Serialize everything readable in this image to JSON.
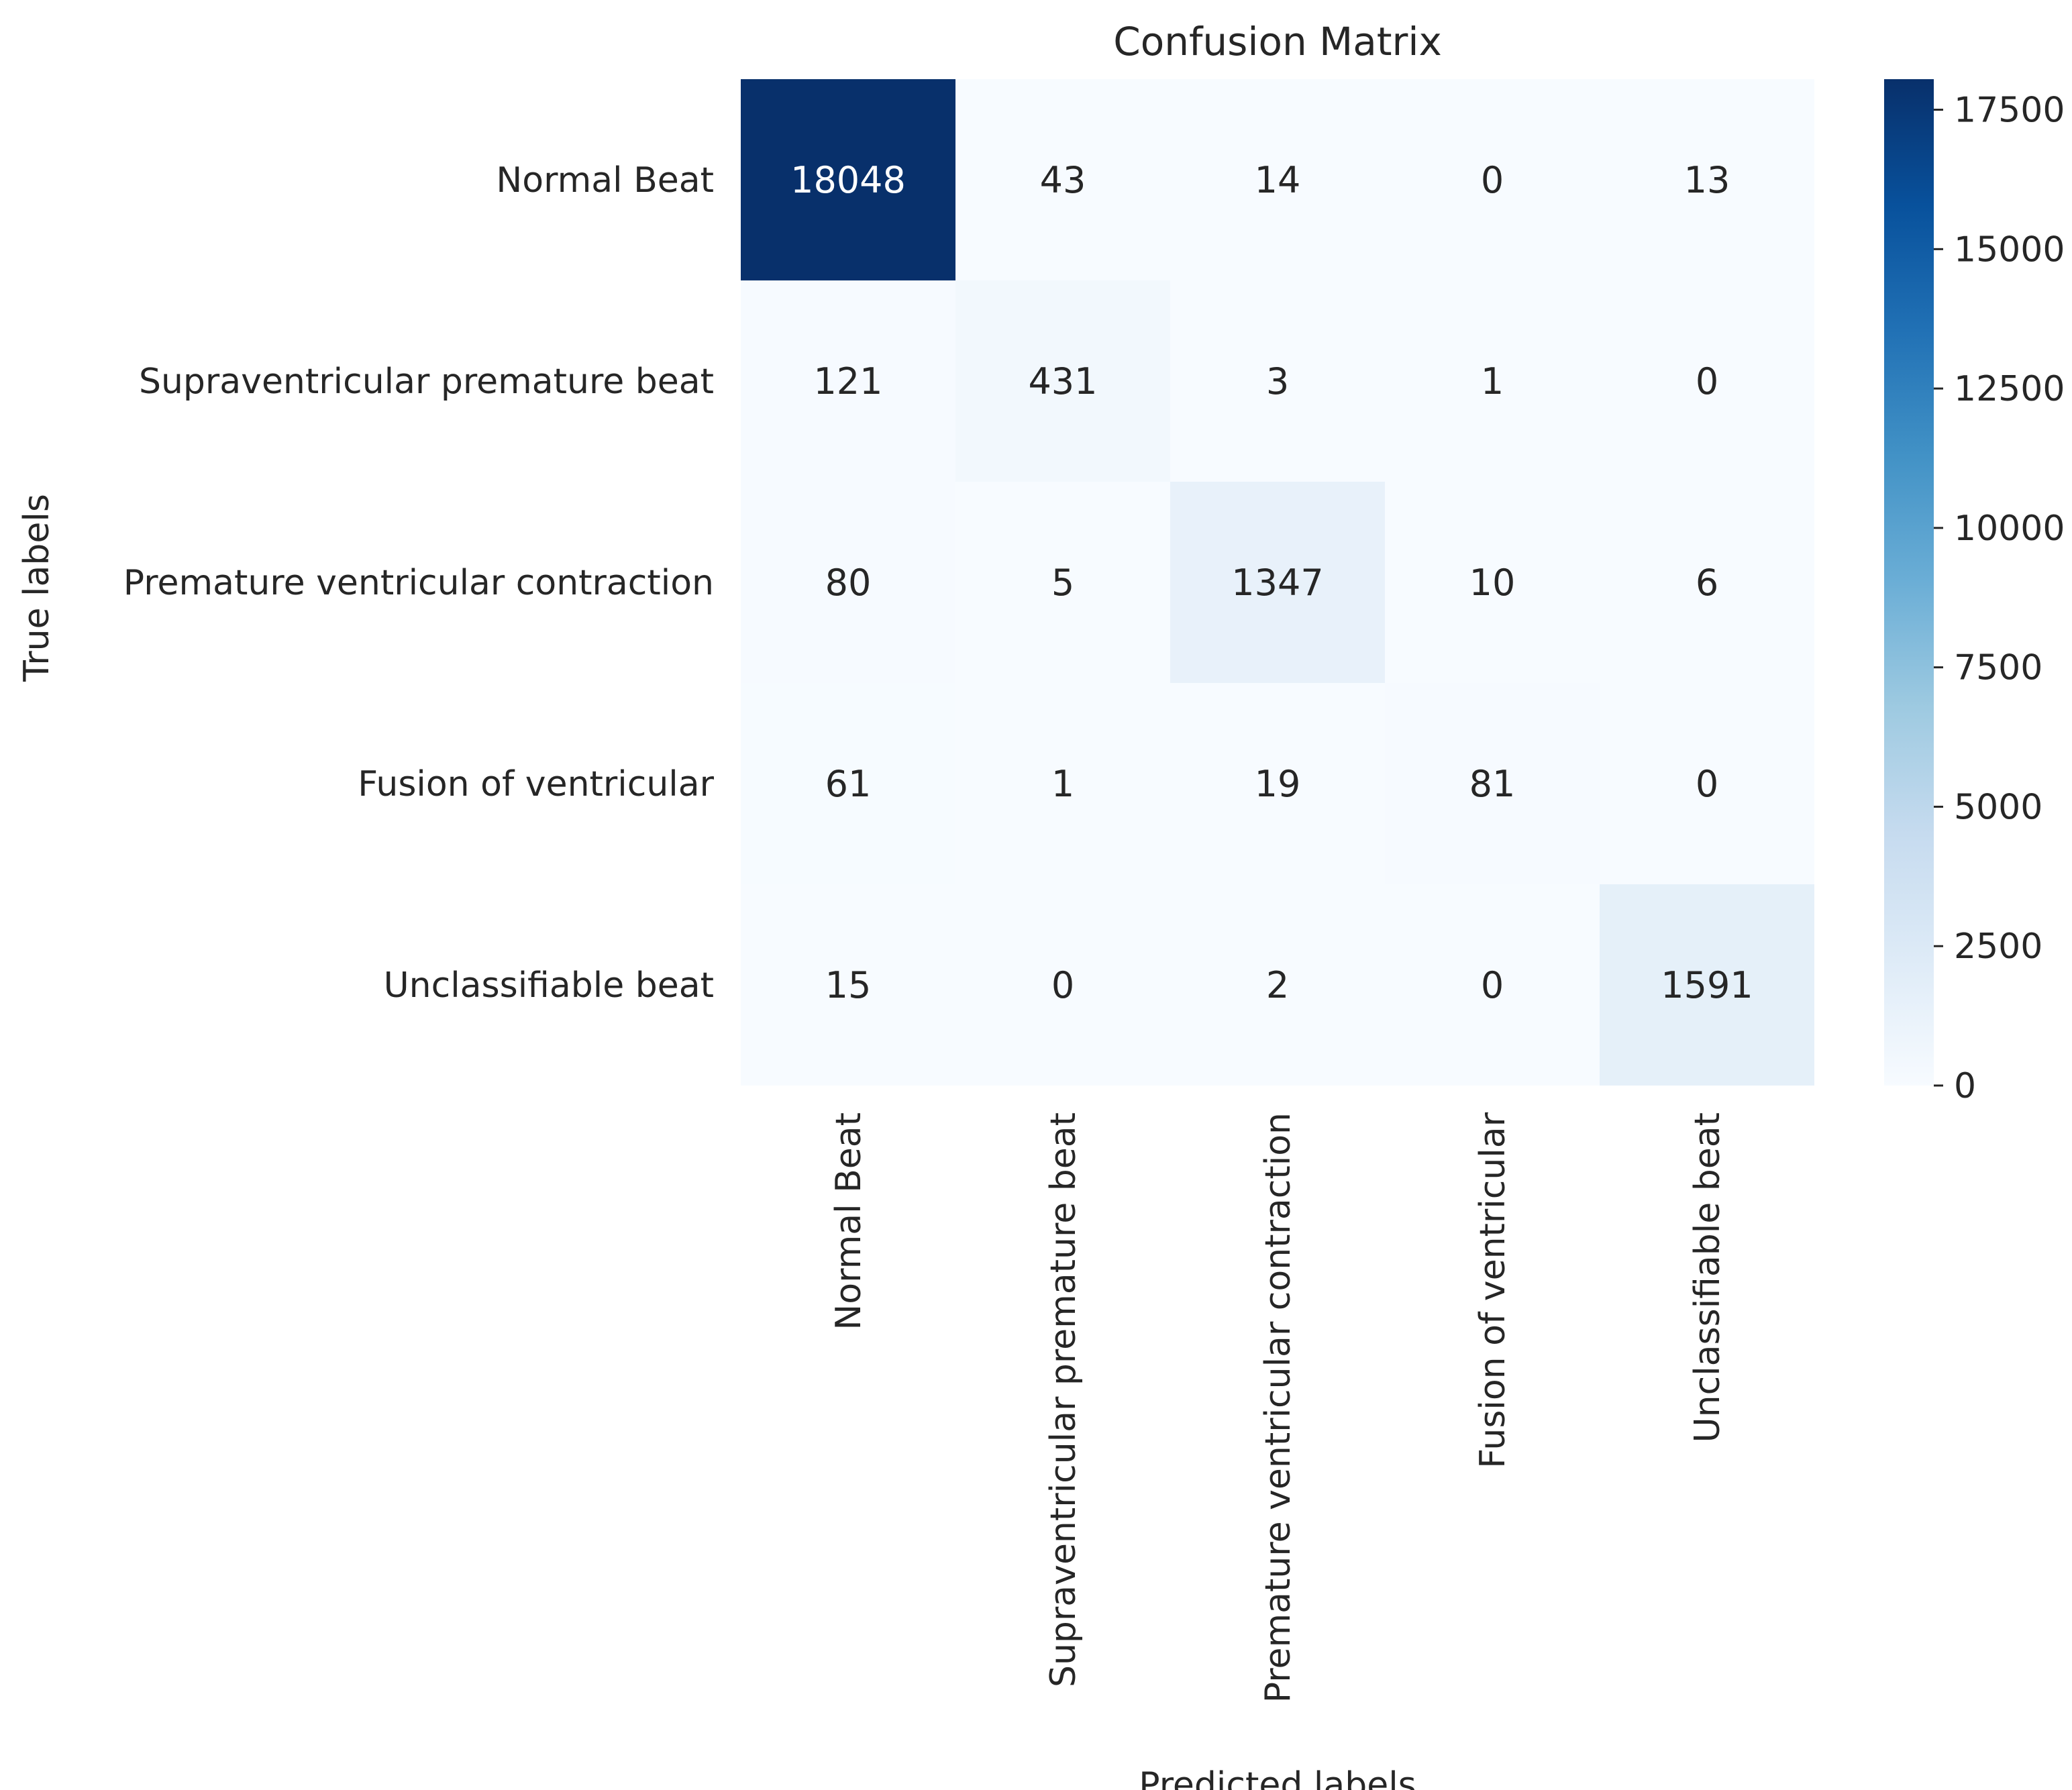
{
  "chart_data": {
    "type": "heatmap",
    "title": "Confusion Matrix",
    "xlabel": "Predicted labels",
    "ylabel": "True labels",
    "row_labels": [
      "Normal Beat",
      "Supraventricular premature beat",
      "Premature ventricular contraction",
      "Fusion of ventricular",
      "Unclassifiable beat"
    ],
    "col_labels": [
      "Normal Beat",
      "Supraventricular premature beat",
      "Premature ventricular contraction",
      "Fusion of ventricular",
      "Unclassifiable beat"
    ],
    "values": [
      [
        18048,
        43,
        14,
        0,
        13
      ],
      [
        121,
        431,
        3,
        1,
        0
      ],
      [
        80,
        5,
        1347,
        10,
        6
      ],
      [
        61,
        1,
        19,
        81,
        0
      ],
      [
        15,
        0,
        2,
        0,
        1591
      ]
    ],
    "colorbar": {
      "colormap": "Blues",
      "range": [
        0,
        18048
      ],
      "ticks": [
        0,
        2500,
        5000,
        7500,
        10000,
        12500,
        15000,
        17500
      ]
    },
    "grid": false
  }
}
